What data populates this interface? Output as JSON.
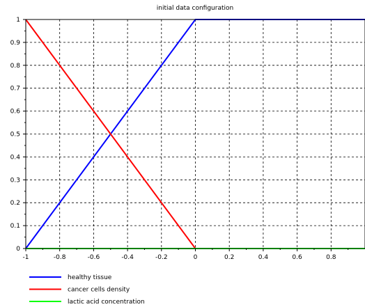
{
  "chart_data": {
    "type": "line",
    "title": "initial data configuration",
    "xlabel": "",
    "ylabel": "",
    "xlim": [
      -1,
      1
    ],
    "ylim": [
      0,
      1
    ],
    "x_ticks": [
      -1,
      -0.8,
      -0.6,
      -0.4,
      -0.2,
      0,
      0.2,
      0.4,
      0.6,
      0.8
    ],
    "x_tick_labels": [
      "-1",
      "-0.8",
      "-0.6",
      "-0.4",
      "-0.2",
      "0",
      "0.2",
      "0.4",
      "0.6",
      "0.8"
    ],
    "y_ticks": [
      0,
      0.1,
      0.2,
      0.3,
      0.4,
      0.5,
      0.6,
      0.7,
      0.8,
      0.9,
      1
    ],
    "y_tick_labels": [
      "0",
      "0.1",
      "0.2",
      "0.3",
      "0.4",
      "0.5",
      "0.6",
      "0.7",
      "0.8",
      "0.9",
      "1"
    ],
    "grid": true,
    "legend_position": "bottom-left, below plot",
    "series": [
      {
        "name": "healthy tissue",
        "color": "#0000ff",
        "x": [
          -1,
          0,
          1
        ],
        "y": [
          0,
          1,
          1
        ]
      },
      {
        "name": "cancer cells density",
        "color": "#ff0000",
        "x": [
          -1,
          0,
          1
        ],
        "y": [
          1,
          0,
          0
        ]
      },
      {
        "name": "lactic acid concentration",
        "color": "#00ff00",
        "x": [
          -1,
          1
        ],
        "y": [
          0,
          0
        ]
      }
    ]
  }
}
